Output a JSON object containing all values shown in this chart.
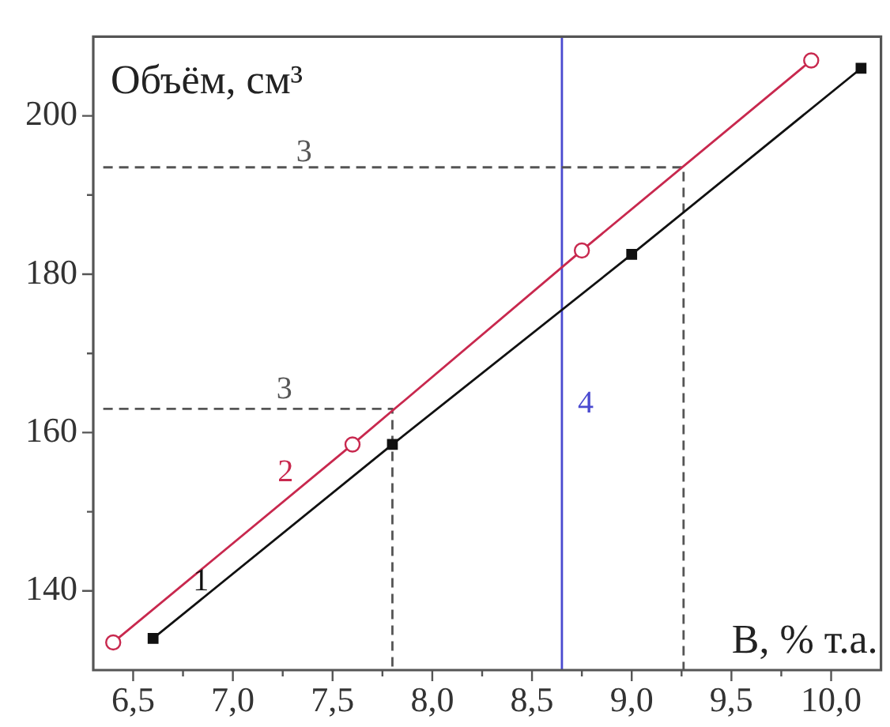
{
  "chart_data": {
    "type": "line",
    "xlabel": "В, % т.а.",
    "ylabel": "Объём, см³",
    "xlim": [
      6.3,
      10.25
    ],
    "ylim": [
      130,
      210
    ],
    "xticks": [
      {
        "value": 6.5,
        "label": "6,5"
      },
      {
        "value": 6.75,
        "label": null
      },
      {
        "value": 7.0,
        "label": "7,0"
      },
      {
        "value": 7.25,
        "label": null
      },
      {
        "value": 7.5,
        "label": "7,5"
      },
      {
        "value": 7.75,
        "label": null
      },
      {
        "value": 8.0,
        "label": "8,0"
      },
      {
        "value": 8.25,
        "label": null
      },
      {
        "value": 8.5,
        "label": "8,5"
      },
      {
        "value": 8.75,
        "label": null
      },
      {
        "value": 9.0,
        "label": "9,0"
      },
      {
        "value": 9.25,
        "label": null
      },
      {
        "value": 9.5,
        "label": "9,5"
      },
      {
        "value": 9.75,
        "label": null
      },
      {
        "value": 10.0,
        "label": "10,0"
      }
    ],
    "yticks": [
      140,
      {
        "value": 150,
        "label": null
      },
      160,
      {
        "value": 170,
        "label": null
      },
      180,
      {
        "value": 190,
        "label": null
      },
      200
    ],
    "grid": false,
    "legend": false,
    "series": [
      {
        "name": "1",
        "color": "#111111",
        "marker": "square",
        "line_style": "solid",
        "x": [
          6.6,
          7.8,
          9.0,
          10.15
        ],
        "values": [
          134,
          158.5,
          182.5,
          206
        ]
      },
      {
        "name": "2",
        "color": "#c8284e",
        "marker": "circle",
        "line_style": "solid",
        "x": [
          6.4,
          7.6,
          8.75,
          9.9
        ],
        "values": [
          133.5,
          158.5,
          183,
          207
        ]
      },
      {
        "name": "3",
        "color": "#555555",
        "marker": "none",
        "line_style": "dashed",
        "x": [
          6.35,
          7.8,
          7.8
        ],
        "values": [
          163,
          163,
          130
        ]
      },
      {
        "name": "3",
        "color": "#555555",
        "marker": "none",
        "line_style": "dashed",
        "x": [
          6.35,
          9.26,
          9.26
        ],
        "values": [
          193.5,
          193.5,
          130
        ]
      },
      {
        "name": "4",
        "color": "#4a4ad0",
        "marker": "none",
        "line_style": "solid",
        "x": [
          8.65,
          8.65
        ],
        "values": [
          130,
          210
        ]
      }
    ]
  }
}
